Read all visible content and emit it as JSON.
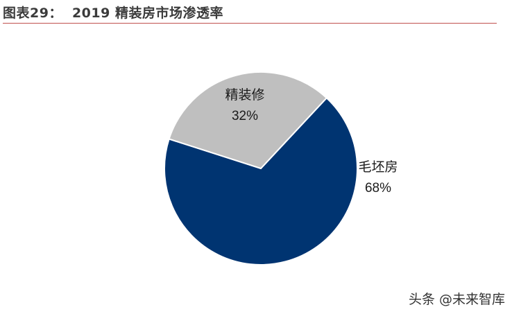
{
  "header": {
    "figure_label": "图表29：",
    "title": "2019 精装房市场渗透率"
  },
  "chart_data": {
    "type": "pie",
    "title": "2019 精装房市场渗透率",
    "slices": [
      {
        "label": "毛坯房",
        "value": 68,
        "value_label": "68%",
        "color": "#003471"
      },
      {
        "label": "精装修",
        "value": 32,
        "value_label": "32%",
        "color": "#bfbfbf"
      }
    ],
    "start": "top-right",
    "direction": "clockwise",
    "legend": "none"
  },
  "colors": {
    "rule": "#c0504d",
    "slice_border": "#ffffff",
    "label_text": "#1a1a1a"
  },
  "watermark": {
    "text": "头条 @未来智库"
  }
}
